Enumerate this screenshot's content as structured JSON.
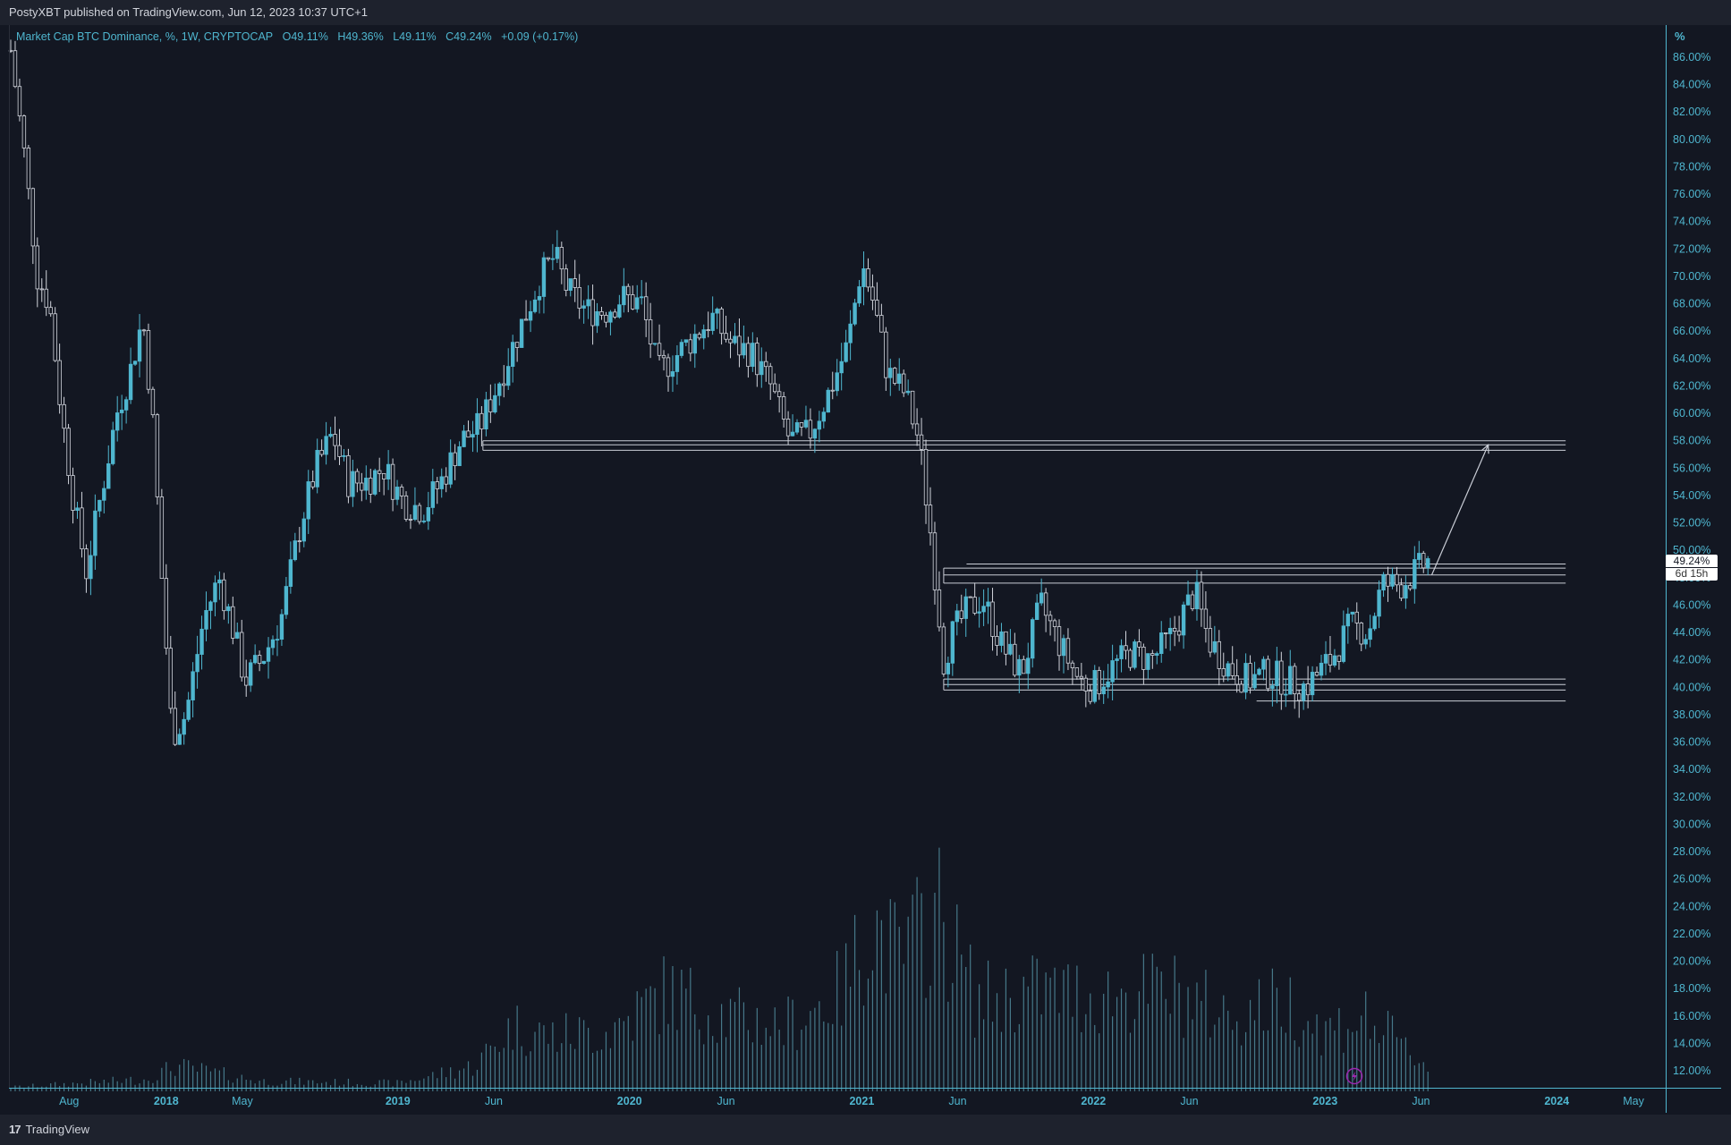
{
  "header": {
    "published_text": "PostyXBT published on TradingView.com, Jun 12, 2023 10:37 UTC+1"
  },
  "legend": {
    "title": "Market Cap BTC Dominance, %, 1W, CRYPTOCAP",
    "open": "O49.11%",
    "high": "H49.36%",
    "low": "L49.11%",
    "close": "C49.24%",
    "change": "+0.09 (+0.17%)"
  },
  "price_scale": {
    "unit": "%",
    "current_value": "49.24%",
    "countdown": "6d 15h"
  },
  "footer": {
    "brand": "TradingView"
  },
  "colors": {
    "background": "#131722",
    "up_candle": "#4fb6cf",
    "down_candle": "#d1d4dc",
    "drawing_lines": "#c9cdd6",
    "axis_text": "#4fb6cf",
    "volume_bars": "#4f8a9b"
  },
  "chart_data": {
    "type": "candlestick",
    "title": "Market Cap BTC Dominance, %, 1W, CRYPTOCAP",
    "ylabel": "%",
    "ylim": [
      10.5,
      87.2
    ],
    "y_ticks": [
      "86.00%",
      "84.00%",
      "82.00%",
      "80.00%",
      "78.00%",
      "76.00%",
      "74.00%",
      "72.00%",
      "70.00%",
      "68.00%",
      "66.00%",
      "64.00%",
      "62.00%",
      "60.00%",
      "58.00%",
      "56.00%",
      "54.00%",
      "52.00%",
      "50.00%",
      "48.00%",
      "46.00%",
      "44.00%",
      "42.00%",
      "40.00%",
      "38.00%",
      "36.00%",
      "34.00%",
      "32.00%",
      "30.00%",
      "28.00%",
      "26.00%",
      "24.00%",
      "22.00%",
      "20.00%",
      "18.00%",
      "16.00%",
      "14.00%",
      "12.00%"
    ],
    "x_ticks": [
      "Aug",
      "2018",
      "May",
      "2019",
      "Jun",
      "2020",
      "Jun",
      "2021",
      "Jun",
      "2022",
      "Jun",
      "2023",
      "Jun",
      "2024",
      "May"
    ],
    "x_range": [
      "2017-05-01",
      "2024-06-15"
    ],
    "x_tick_dates": [
      "2017-08-01",
      "2018-01-01",
      "2018-05-01",
      "2019-01-01",
      "2019-06-01",
      "2020-01-01",
      "2020-06-01",
      "2021-01-01",
      "2021-06-01",
      "2022-01-01",
      "2022-06-01",
      "2023-01-01",
      "2023-06-01",
      "2024-01-01",
      "2024-05-01"
    ],
    "price_points": [
      [
        "2017-05-01",
        86.5
      ],
      [
        "2017-05-22",
        79.0
      ],
      [
        "2017-06-12",
        70.0
      ],
      [
        "2017-07-01",
        68.0
      ],
      [
        "2017-07-20",
        60.0
      ],
      [
        "2017-08-10",
        53.0
      ],
      [
        "2017-08-28",
        48.5
      ],
      [
        "2017-09-20",
        54.0
      ],
      [
        "2017-10-15",
        60.0
      ],
      [
        "2017-11-05",
        63.0
      ],
      [
        "2017-11-25",
        67.0
      ],
      [
        "2017-12-10",
        60.0
      ],
      [
        "2017-12-25",
        48.0
      ],
      [
        "2018-01-10",
        36.5
      ],
      [
        "2018-02-01",
        38.0
      ],
      [
        "2018-03-01",
        45.0
      ],
      [
        "2018-03-25",
        48.0
      ],
      [
        "2018-04-15",
        44.5
      ],
      [
        "2018-05-05",
        40.5
      ],
      [
        "2018-06-01",
        42.0
      ],
      [
        "2018-07-01",
        45.0
      ],
      [
        "2018-08-01",
        52.0
      ],
      [
        "2018-08-25",
        56.0
      ],
      [
        "2018-09-20",
        58.5
      ],
      [
        "2018-10-15",
        55.0
      ],
      [
        "2018-11-10",
        55.0
      ],
      [
        "2018-12-10",
        56.0
      ],
      [
        "2019-01-10",
        53.5
      ],
      [
        "2019-02-10",
        53.0
      ],
      [
        "2019-03-10",
        55.0
      ],
      [
        "2019-04-10",
        58.0
      ],
      [
        "2019-05-10",
        59.0
      ],
      [
        "2019-06-15",
        63.0
      ],
      [
        "2019-07-15",
        66.5
      ],
      [
        "2019-08-15",
        70.0
      ],
      [
        "2019-09-05",
        71.5
      ],
      [
        "2019-09-25",
        69.0
      ],
      [
        "2019-10-25",
        67.5
      ],
      [
        "2019-11-25",
        67.5
      ],
      [
        "2019-12-20",
        68.5
      ],
      [
        "2020-01-20",
        68.0
      ],
      [
        "2020-02-15",
        63.0
      ],
      [
        "2020-03-10",
        64.0
      ],
      [
        "2020-04-10",
        65.5
      ],
      [
        "2020-05-10",
        67.0
      ],
      [
        "2020-06-10",
        65.0
      ],
      [
        "2020-07-10",
        64.5
      ],
      [
        "2020-08-10",
        62.0
      ],
      [
        "2020-09-10",
        58.0
      ],
      [
        "2020-10-10",
        58.5
      ],
      [
        "2020-11-10",
        61.5
      ],
      [
        "2020-12-10",
        65.0
      ],
      [
        "2021-01-01",
        71.0
      ],
      [
        "2021-01-20",
        68.0
      ],
      [
        "2021-02-10",
        63.0
      ],
      [
        "2021-03-10",
        61.5
      ],
      [
        "2021-04-01",
        58.0
      ],
      [
        "2021-04-20",
        51.0
      ],
      [
        "2021-05-10",
        42.0
      ],
      [
        "2021-05-25",
        44.0
      ],
      [
        "2021-06-15",
        45.5
      ],
      [
        "2021-07-10",
        46.5
      ],
      [
        "2021-08-10",
        43.0
      ],
      [
        "2021-09-10",
        41.0
      ],
      [
        "2021-10-10",
        46.0
      ],
      [
        "2021-11-10",
        43.0
      ],
      [
        "2021-12-10",
        40.5
      ],
      [
        "2022-01-01",
        40.0
      ],
      [
        "2022-02-01",
        41.5
      ],
      [
        "2022-03-01",
        42.5
      ],
      [
        "2022-04-01",
        42.0
      ],
      [
        "2022-05-01",
        43.5
      ],
      [
        "2022-06-10",
        47.0
      ],
      [
        "2022-07-01",
        43.5
      ],
      [
        "2022-08-01",
        41.5
      ],
      [
        "2022-09-01",
        40.5
      ],
      [
        "2022-10-01",
        41.0
      ],
      [
        "2022-11-01",
        40.5
      ],
      [
        "2022-12-01",
        40.0
      ],
      [
        "2023-01-10",
        42.0
      ],
      [
        "2023-02-10",
        44.5
      ],
      [
        "2023-03-10",
        44.0
      ],
      [
        "2023-04-01",
        47.5
      ],
      [
        "2023-05-01",
        47.5
      ],
      [
        "2023-06-12",
        49.2
      ]
    ],
    "horizontal_zones": [
      {
        "from": "2019-05-15",
        "to": "2024-01-15",
        "levels": [
          57.3,
          57.7,
          58.0
        ]
      },
      {
        "from": "2021-06-15",
        "to": "2024-01-15",
        "levels": [
          49.0
        ]
      },
      {
        "from": "2021-05-10",
        "to": "2024-01-15",
        "levels": [
          47.6,
          48.2,
          48.7
        ]
      },
      {
        "from": "2021-05-10",
        "to": "2024-01-15",
        "levels": [
          39.8,
          40.2,
          40.6
        ]
      },
      {
        "from": "2022-09-15",
        "to": "2024-01-15",
        "levels": [
          39.0
        ]
      }
    ],
    "projection_arrow": {
      "from": [
        "2023-06-18",
        48.2
      ],
      "to": [
        "2023-09-15",
        57.7
      ]
    },
    "volume_points": [
      [
        "2017-05-01",
        0.4
      ],
      [
        "2017-12-01",
        1.2
      ],
      [
        "2018-01-15",
        2.5
      ],
      [
        "2018-06-01",
        1.0
      ],
      [
        "2019-01-01",
        0.8
      ],
      [
        "2019-05-01",
        2.5
      ],
      [
        "2019-07-01",
        6.5
      ],
      [
        "2019-09-01",
        5.5
      ],
      [
        "2019-12-01",
        6.0
      ],
      [
        "2020-03-01",
        10.0
      ],
      [
        "2020-06-01",
        7.5
      ],
      [
        "2020-09-01",
        6.5
      ],
      [
        "2020-12-01",
        10.0
      ],
      [
        "2021-01-15",
        17.0
      ],
      [
        "2021-03-01",
        13.0
      ],
      [
        "2021-05-01",
        18.0
      ],
      [
        "2021-07-01",
        9.0
      ],
      [
        "2021-10-01",
        10.0
      ],
      [
        "2022-01-01",
        9.5
      ],
      [
        "2022-05-01",
        10.0
      ],
      [
        "2022-08-01",
        7.5
      ],
      [
        "2022-11-01",
        9.0
      ],
      [
        "2023-01-01",
        6.0
      ],
      [
        "2023-03-01",
        7.5
      ],
      [
        "2023-06-12",
        2.5
      ]
    ]
  }
}
